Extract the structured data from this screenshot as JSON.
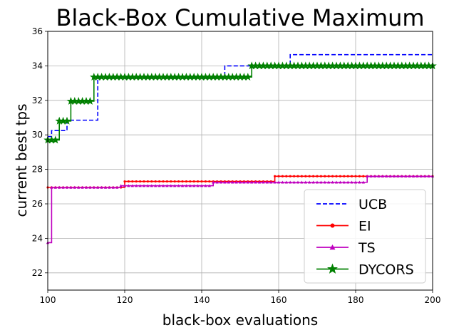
{
  "chart_data": {
    "type": "line",
    "title": "Black-Box Cumulative Maximum",
    "xlabel": "black-box evaluations",
    "ylabel": "current best tps",
    "xlim": [
      100,
      200
    ],
    "ylim": [
      21,
      36
    ],
    "xticks": [
      100,
      120,
      140,
      160,
      180,
      200
    ],
    "yticks": [
      22,
      24,
      26,
      28,
      30,
      32,
      34,
      36
    ],
    "grid": true,
    "legend_position": "lower-right",
    "series": [
      {
        "name": "UCB",
        "color": "#0000ff",
        "style": "dashed",
        "marker": "none",
        "steps": [
          [
            100,
            29.9
          ],
          [
            101,
            30.25
          ],
          [
            105,
            30.85
          ],
          [
            113,
            33.3
          ],
          [
            146,
            34.0
          ],
          [
            163,
            34.65
          ],
          [
            200,
            34.65
          ]
        ]
      },
      {
        "name": "EI",
        "color": "#ff0000",
        "style": "solid",
        "marker": "dot",
        "steps": [
          [
            100,
            26.95
          ],
          [
            120,
            27.3
          ],
          [
            159,
            27.6
          ],
          [
            200,
            27.6
          ]
        ]
      },
      {
        "name": "TS",
        "color": "#bf00bf",
        "style": "solid",
        "marker": "triangle",
        "steps": [
          [
            100,
            23.75
          ],
          [
            101,
            26.95
          ],
          [
            119,
            27.05
          ],
          [
            143,
            27.25
          ],
          [
            183,
            27.6
          ],
          [
            200,
            27.6
          ]
        ]
      },
      {
        "name": "DYCORS",
        "color": "#008000",
        "style": "solid",
        "marker": "star",
        "steps": [
          [
            100,
            29.7
          ],
          [
            103,
            30.8
          ],
          [
            106,
            31.95
          ],
          [
            112,
            33.35
          ],
          [
            153,
            34.0
          ],
          [
            200,
            34.0
          ]
        ]
      }
    ]
  }
}
